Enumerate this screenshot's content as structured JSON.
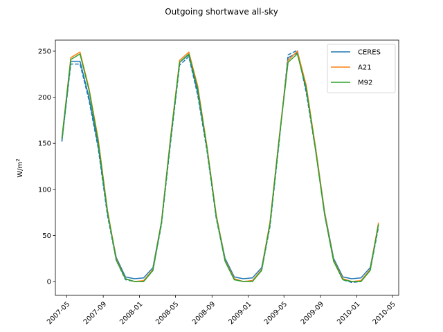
{
  "chart_data": {
    "type": "line",
    "title": "Outgoing shortwave all-sky",
    "ylabel": "W/m",
    "ylabel_superscript": "2",
    "xlabel": "",
    "ylim": [
      -15,
      262
    ],
    "xlim": [
      "2007-03-24",
      "2010-05-22"
    ],
    "yticks": [
      0,
      50,
      100,
      150,
      200,
      250
    ],
    "xticks": [
      {
        "date": "2007-05-01",
        "label": "2007-05"
      },
      {
        "date": "2007-09-01",
        "label": "2007-09"
      },
      {
        "date": "2008-01-01",
        "label": "2008-01"
      },
      {
        "date": "2008-05-01",
        "label": "2008-05"
      },
      {
        "date": "2008-09-01",
        "label": "2008-09"
      },
      {
        "date": "2009-01-01",
        "label": "2009-01"
      },
      {
        "date": "2009-05-01",
        "label": "2009-05"
      },
      {
        "date": "2009-09-01",
        "label": "2009-09"
      },
      {
        "date": "2010-01-01",
        "label": "2010-01"
      },
      {
        "date": "2010-05-01",
        "label": "2010-05"
      }
    ],
    "legend_placement": "top-right",
    "grid": false,
    "x": [
      "2007-04-15",
      "2007-05-15",
      "2007-06-15",
      "2007-07-15",
      "2007-08-15",
      "2007-09-15",
      "2007-10-15",
      "2007-11-15",
      "2007-12-15",
      "2008-01-15",
      "2008-02-15",
      "2008-03-15",
      "2008-04-15",
      "2008-05-15",
      "2008-06-15",
      "2008-07-15",
      "2008-08-15",
      "2008-09-15",
      "2008-10-15",
      "2008-11-15",
      "2008-12-15",
      "2009-01-15",
      "2009-02-15",
      "2009-03-15",
      "2009-04-15",
      "2009-05-15",
      "2009-06-15",
      "2009-07-15",
      "2009-08-15",
      "2009-09-15",
      "2009-10-15",
      "2009-11-15",
      "2009-12-15",
      "2010-01-15",
      "2010-02-15",
      "2010-03-15"
    ],
    "series": [
      {
        "name": "CERES",
        "color": "#1f77b4",
        "values": [
          152,
          239,
          239,
          200,
          148,
          75,
          26,
          5,
          3,
          4,
          15,
          65,
          155,
          238,
          246,
          205,
          145,
          72,
          25,
          5,
          3,
          4,
          15,
          63,
          155,
          243,
          248,
          208,
          146,
          75,
          25,
          5,
          3,
          4,
          15,
          62
        ]
      },
      {
        "name": "CERES-dashed",
        "color": "#1f77b4",
        "values": [
          152,
          236,
          236,
          197,
          145,
          72,
          23,
          2,
          0,
          0,
          12,
          62,
          152,
          235,
          244,
          202,
          142,
          69,
          22,
          2,
          0,
          1,
          12,
          60,
          152,
          246,
          251,
          205,
          143,
          72,
          22,
          2,
          -1,
          0,
          12,
          59
        ]
      },
      {
        "name": "A21",
        "color": "#ff7f0e",
        "values": [
          155,
          243,
          249,
          210,
          155,
          78,
          24,
          3,
          0,
          1,
          13,
          65,
          158,
          240,
          249,
          212,
          147,
          73,
          23,
          3,
          0,
          1,
          13,
          65,
          157,
          240,
          250,
          213,
          146,
          74,
          23,
          3,
          0,
          1,
          13,
          64
        ]
      },
      {
        "name": "M92",
        "color": "#2ca02c",
        "values": [
          155,
          241,
          247,
          208,
          152,
          76,
          23,
          3,
          0,
          0,
          12,
          64,
          156,
          238,
          247,
          209,
          145,
          71,
          22,
          2,
          0,
          0,
          12,
          63,
          155,
          238,
          247,
          210,
          143,
          72,
          22,
          2,
          0,
          0,
          12,
          62
        ]
      }
    ]
  }
}
